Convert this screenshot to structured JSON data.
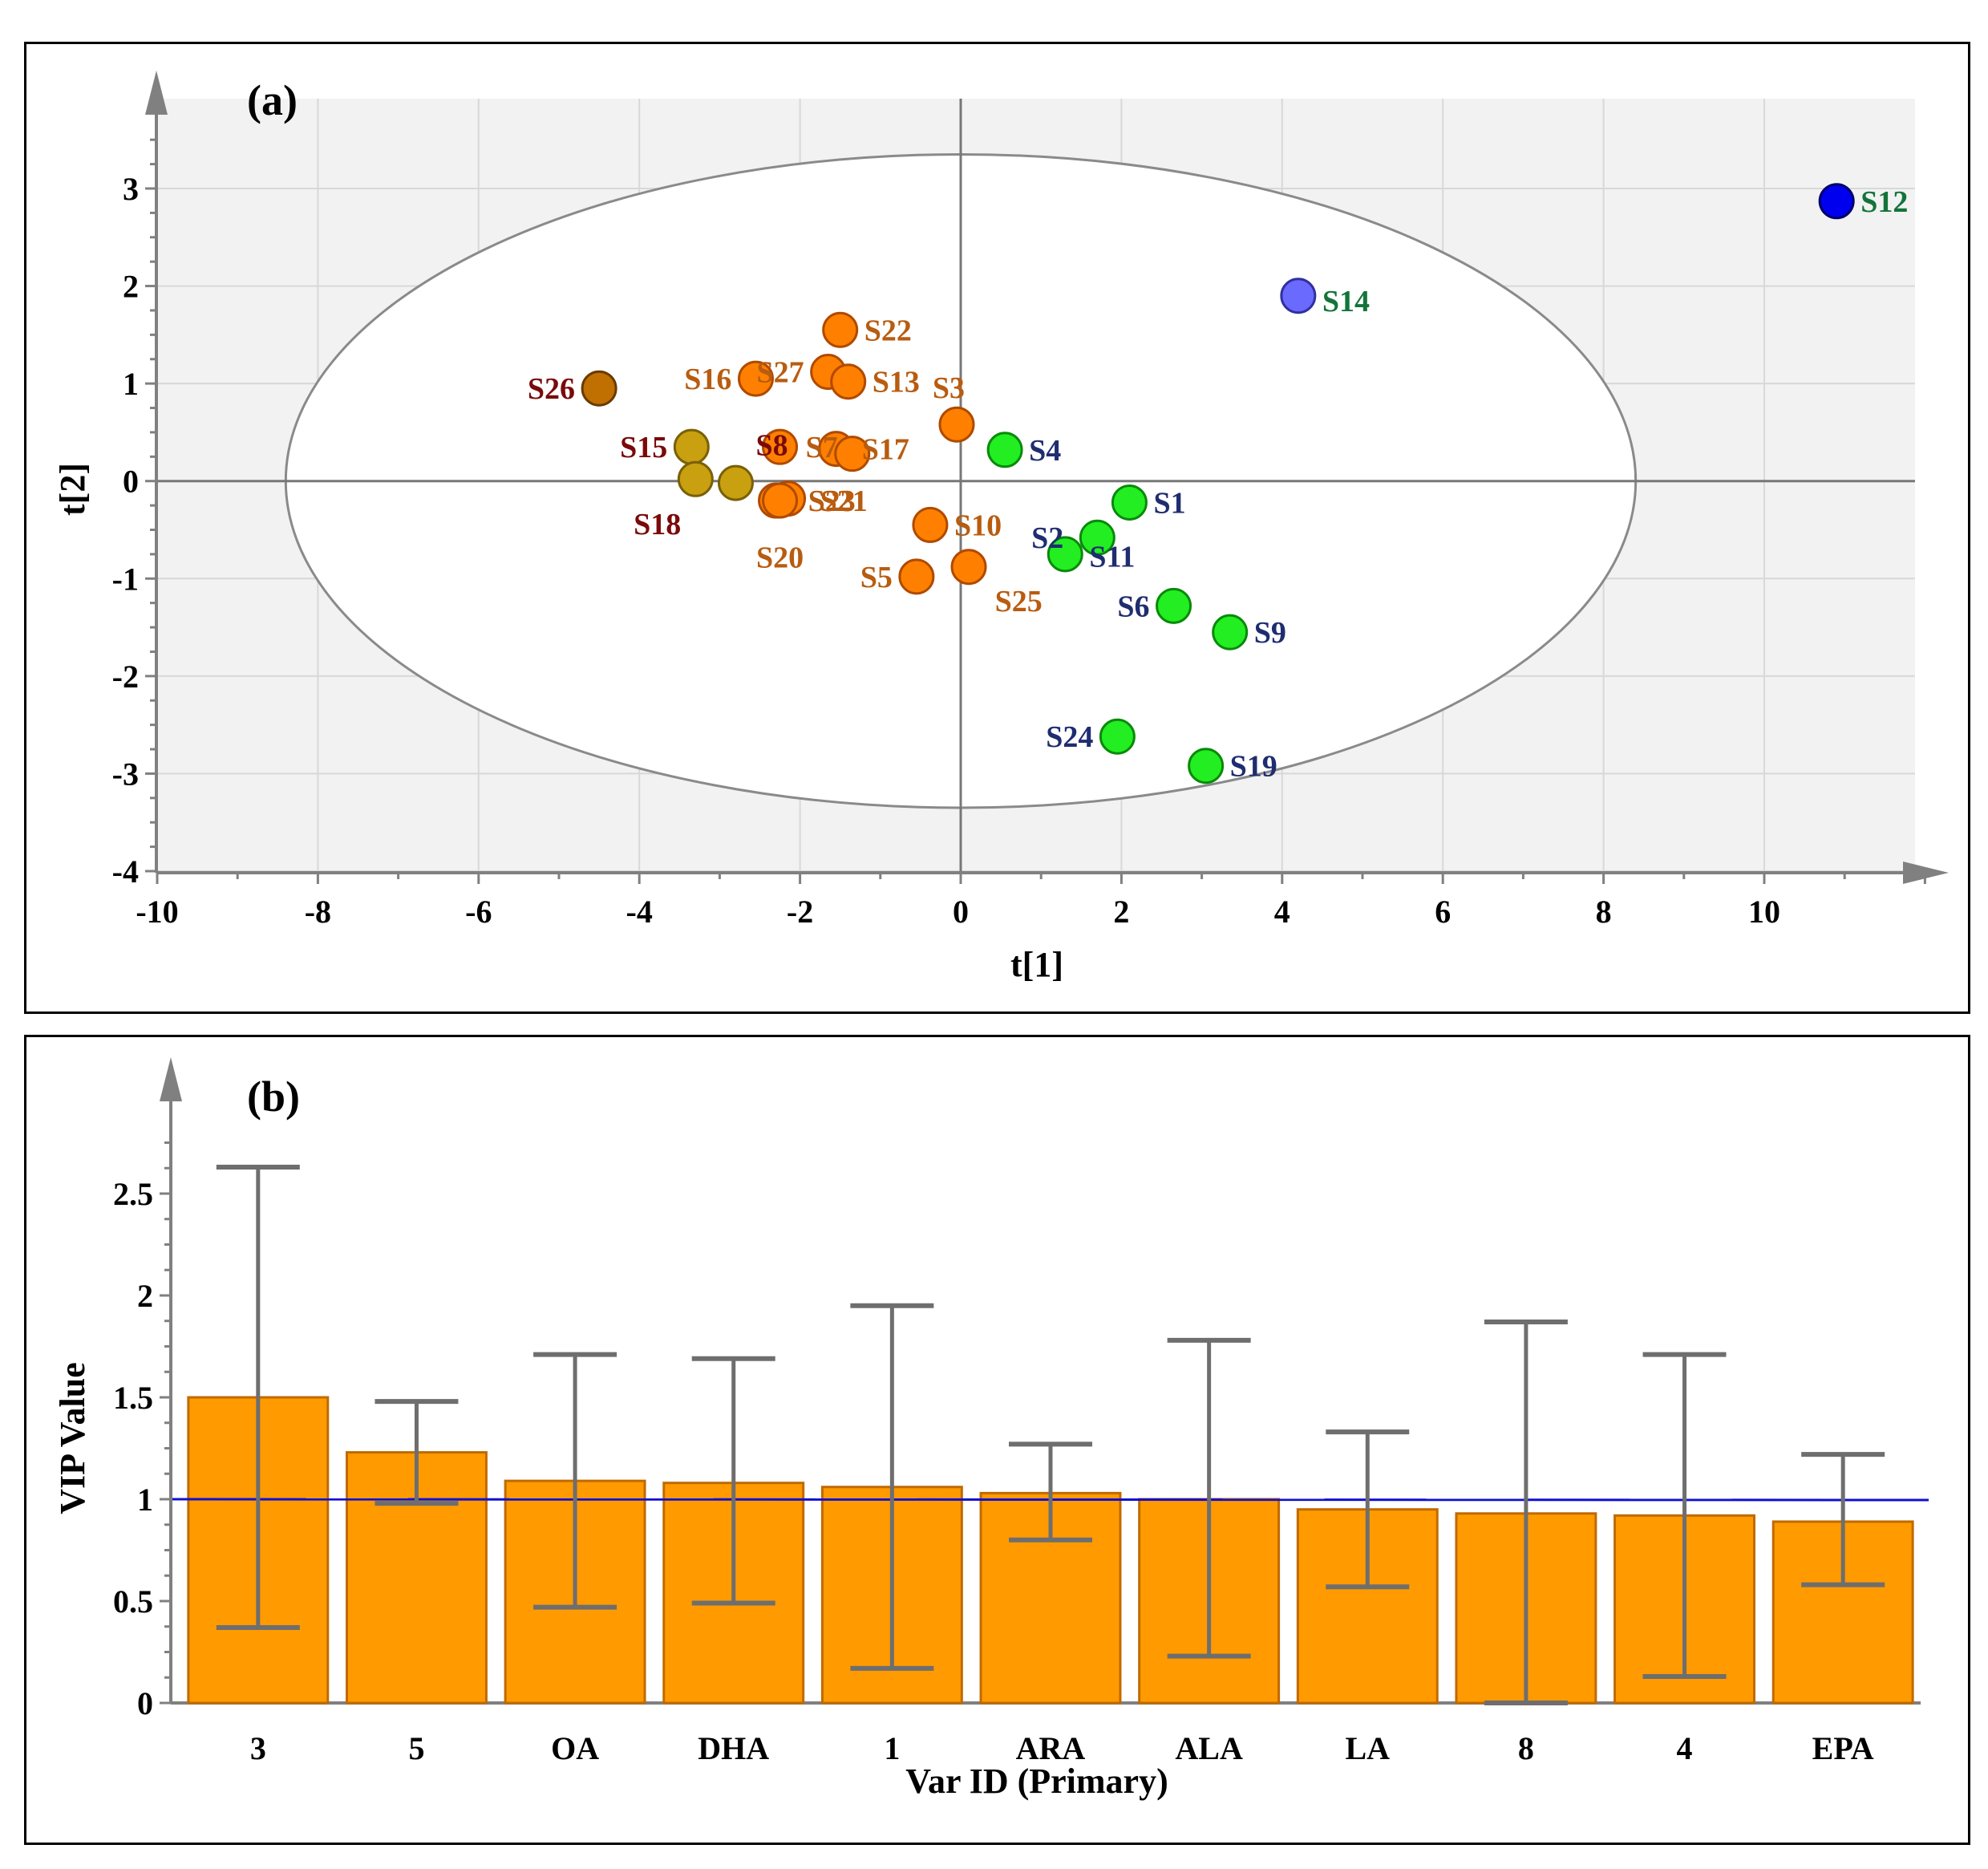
{
  "chart_data": [
    {
      "type": "scatter",
      "panel_label": "(a)",
      "xlabel": "t[1]",
      "ylabel": "t[2]",
      "xlim": [
        -10,
        12.2
      ],
      "ylim": [
        -4,
        4
      ],
      "xticks": [
        -10,
        -8,
        -6,
        -4,
        -2,
        0,
        2,
        4,
        6,
        8,
        10
      ],
      "xtick_labels": [
        "-10",
        "-8",
        "-6",
        "-4",
        "-2",
        "0",
        "2",
        "4",
        "6",
        "8",
        "10"
      ],
      "yticks": [
        -4,
        -3,
        -2,
        -1,
        0,
        1,
        2,
        3
      ],
      "ytick_labels": [
        "-4",
        "-3",
        "-2",
        "-1",
        "0",
        "1",
        "2",
        "3"
      ],
      "grid": true,
      "ellipse": {
        "cx": 0,
        "cy": 0,
        "rx": 8.4,
        "ry": 3.35
      },
      "colors": {
        "orange": "#ff8000",
        "green": "#22ee22",
        "olive": "#c8a010",
        "brown": "#c07000",
        "blue": "#0000ee",
        "lightblue": "#6a6aff",
        "label_orange": "#b85c10",
        "label_navy": "#1f2d70",
        "label_darkred": "#7a0a0a",
        "label_green": "#13743a"
      },
      "points": [
        {
          "id": "S12",
          "x": 10.9,
          "y": 2.87,
          "color": "blue",
          "labelColor": "label_green",
          "lx": 0.3,
          "ly": 0.0,
          "anchor": "start"
        },
        {
          "id": "S14",
          "x": 4.2,
          "y": 1.9,
          "color": "lightblue",
          "labelColor": "label_green",
          "lx": 0.3,
          "ly": -0.05,
          "anchor": "start"
        },
        {
          "id": "S22",
          "x": -1.5,
          "y": 1.55,
          "color": "orange",
          "labelColor": "label_orange",
          "lx": 0.3,
          "ly": 0.0,
          "anchor": "start"
        },
        {
          "id": "S26",
          "x": -4.5,
          "y": 0.95,
          "color": "brown",
          "labelColor": "label_darkred",
          "lx": -0.3,
          "ly": 0.0,
          "anchor": "end"
        },
        {
          "id": "S16",
          "x": -2.55,
          "y": 1.05,
          "color": "orange",
          "labelColor": "label_orange",
          "lx": -0.3,
          "ly": 0.0,
          "anchor": "end"
        },
        {
          "id": "S27",
          "x": -1.65,
          "y": 1.12,
          "color": "orange",
          "labelColor": "label_orange",
          "lx": -0.3,
          "ly": 0.0,
          "anchor": "end"
        },
        {
          "id": "S13",
          "x": -1.4,
          "y": 1.02,
          "color": "orange",
          "labelColor": "label_orange",
          "lx": 0.3,
          "ly": 0.0,
          "anchor": "start"
        },
        {
          "id": "S3",
          "x": -0.05,
          "y": 0.58,
          "color": "orange",
          "labelColor": "label_orange",
          "lx": -0.3,
          "ly": 0.38,
          "anchor": "start"
        },
        {
          "id": "S4",
          "x": 0.55,
          "y": 0.32,
          "color": "green",
          "labelColor": "label_navy",
          "lx": 0.3,
          "ly": 0.0,
          "anchor": "start"
        },
        {
          "id": "S15",
          "x": -3.35,
          "y": 0.35,
          "color": "olive",
          "labelColor": "label_darkred",
          "lx": -0.3,
          "ly": 0.0,
          "anchor": "end"
        },
        {
          "id": "S8",
          "x": -2.25,
          "y": 0.35,
          "color": "orange",
          "labelColor": "label_darkred",
          "lx": -0.3,
          "ly": 0.02,
          "anchor": "start"
        },
        {
          "id": "S7",
          "x": -1.55,
          "y": 0.33,
          "color": "orange",
          "labelColor": "label_orange",
          "lx": -0.38,
          "ly": 0.02,
          "anchor": "start"
        },
        {
          "id": "S17",
          "x": -1.35,
          "y": 0.28,
          "color": "orange",
          "labelColor": "label_orange",
          "lx": 0.12,
          "ly": 0.05,
          "anchor": "start"
        },
        {
          "id": "",
          "x": -3.3,
          "y": 0.02,
          "color": "olive",
          "labelColor": "label_darkred",
          "lx": 0,
          "ly": 0,
          "anchor": "start"
        },
        {
          "id": "S18",
          "x": -2.8,
          "y": -0.02,
          "color": "olive",
          "labelColor": "label_darkred",
          "lx": -0.68,
          "ly": -0.42,
          "anchor": "end"
        },
        {
          "id": "S23",
          "x": -2.3,
          "y": -0.2,
          "color": "orange",
          "labelColor": "label_orange",
          "lx": 0.4,
          "ly": 0.0,
          "anchor": "start"
        },
        {
          "id": "S21",
          "x": -2.15,
          "y": -0.18,
          "color": "orange",
          "labelColor": "label_orange",
          "lx": 0.4,
          "ly": -0.02,
          "anchor": "start"
        },
        {
          "id": "S20",
          "x": -2.25,
          "y": -0.2,
          "color": "orange",
          "labelColor": "label_orange",
          "lx": 0.0,
          "ly": -0.58,
          "anchor": "middle"
        },
        {
          "id": "S10",
          "x": -0.38,
          "y": -0.45,
          "color": "orange",
          "labelColor": "label_orange",
          "lx": 0.3,
          "ly": 0.0,
          "anchor": "start"
        },
        {
          "id": "S25",
          "x": 0.1,
          "y": -0.88,
          "color": "orange",
          "labelColor": "label_orange",
          "lx": 0.62,
          "ly": -0.35,
          "anchor": "middle"
        },
        {
          "id": "S5",
          "x": -0.55,
          "y": -0.98,
          "color": "orange",
          "labelColor": "label_orange",
          "lx": -0.3,
          "ly": 0.0,
          "anchor": "end"
        },
        {
          "id": "S1",
          "x": 2.1,
          "y": -0.22,
          "color": "green",
          "labelColor": "label_navy",
          "lx": 0.3,
          "ly": 0.0,
          "anchor": "start"
        },
        {
          "id": "S2",
          "x": 1.7,
          "y": -0.58,
          "color": "green",
          "labelColor": "label_navy",
          "lx": -0.82,
          "ly": 0.0,
          "anchor": "start"
        },
        {
          "id": "S11",
          "x": 1.3,
          "y": -0.75,
          "color": "green",
          "labelColor": "label_navy",
          "lx": 0.3,
          "ly": -0.02,
          "anchor": "start"
        },
        {
          "id": "S6",
          "x": 2.65,
          "y": -1.28,
          "color": "green",
          "labelColor": "label_navy",
          "lx": -0.3,
          "ly": 0.0,
          "anchor": "end"
        },
        {
          "id": "S9",
          "x": 3.35,
          "y": -1.55,
          "color": "green",
          "labelColor": "label_navy",
          "lx": 0.3,
          "ly": 0.0,
          "anchor": "start"
        },
        {
          "id": "S24",
          "x": 1.95,
          "y": -2.62,
          "color": "green",
          "labelColor": "label_navy",
          "lx": -0.3,
          "ly": 0.0,
          "anchor": "end"
        },
        {
          "id": "S19",
          "x": 3.05,
          "y": -2.92,
          "color": "green",
          "labelColor": "label_navy",
          "lx": 0.3,
          "ly": 0.0,
          "anchor": "start"
        }
      ]
    },
    {
      "type": "bar",
      "panel_label": "(b)",
      "xlabel": "Var ID (Primary)",
      "ylabel": "VIP Value",
      "ylim": [
        0,
        2.85
      ],
      "yticks": [
        0,
        0.5,
        1,
        1.5,
        2,
        2.5
      ],
      "ytick_labels": [
        "0",
        "0.5",
        "1",
        "1.5",
        "2",
        "2.5"
      ],
      "categories": [
        "3",
        "5",
        "OA",
        "DHA",
        "1",
        "ARA",
        "ALA",
        "LA",
        "8",
        "4",
        "EPA"
      ],
      "values": [
        1.5,
        1.23,
        1.09,
        1.08,
        1.06,
        1.03,
        1.0,
        0.95,
        0.93,
        0.92,
        0.89
      ],
      "err_high": [
        2.63,
        1.48,
        1.71,
        1.69,
        1.95,
        1.27,
        1.78,
        1.33,
        1.87,
        1.71,
        1.22
      ],
      "err_low": [
        0.37,
        0.98,
        0.47,
        0.49,
        0.17,
        0.8,
        0.23,
        0.57,
        0.0,
        0.13,
        0.58
      ],
      "threshold": 1.0,
      "colors": {
        "bar": "#ff9a00",
        "bar_edge": "#c06a00",
        "error": "#6e6e6e",
        "threshold": "#1010d0"
      }
    }
  ]
}
